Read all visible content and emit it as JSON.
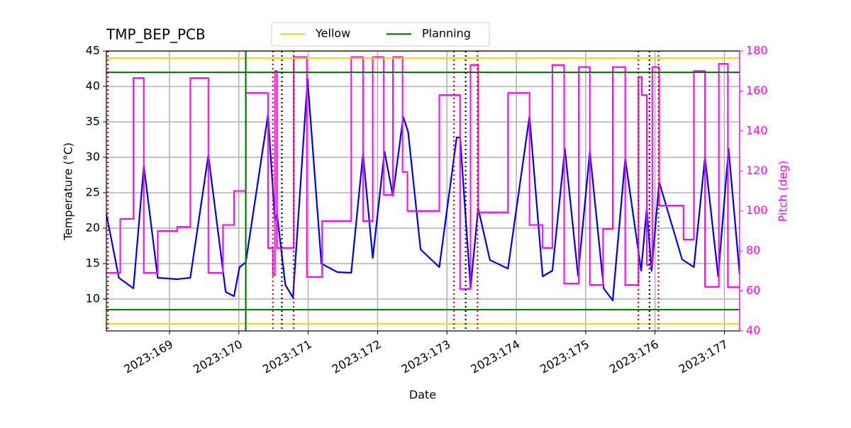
{
  "chart_data": {
    "type": "line",
    "title": "TMP_BEP_PCB",
    "xlabel": "Date",
    "ylabel": "Temperature (°C)",
    "y2label": "Pitch (deg)",
    "xlim": [
      168.09,
      177.22
    ],
    "xticks": [
      {
        "value": 169,
        "label": "2023:169"
      },
      {
        "value": 170,
        "label": "2023:170"
      },
      {
        "value": 171,
        "label": "2023:171"
      },
      {
        "value": 172,
        "label": "2023:172"
      },
      {
        "value": 173,
        "label": "2023:173"
      },
      {
        "value": 174,
        "label": "2023:174"
      },
      {
        "value": 175,
        "label": "2023:175"
      },
      {
        "value": 176,
        "label": "2023:176"
      },
      {
        "value": 177,
        "label": "2023:177"
      }
    ],
    "ylim": [
      5.5,
      45
    ],
    "yticks": [
      10,
      15,
      20,
      25,
      30,
      35,
      40,
      45
    ],
    "y2lim": [
      40,
      180
    ],
    "y2ticks": [
      40,
      60,
      80,
      100,
      120,
      140,
      160,
      180
    ],
    "grid": true,
    "legend": "top",
    "limits": [
      {
        "name": "Yellow",
        "color": "#ffd700",
        "values": [
          44,
          6.5
        ]
      },
      {
        "name": "Planning",
        "color": "#008000",
        "values": [
          42,
          8.5
        ]
      }
    ],
    "vlines": [
      {
        "x": 170.1,
        "color": "#008000",
        "style": "solid"
      },
      {
        "x": 168.11,
        "color": "#e00000",
        "style": "dotted"
      },
      {
        "x": 170.49,
        "color": "#e00000",
        "style": "dotted"
      },
      {
        "x": 170.79,
        "color": "#e00000",
        "style": "dotted"
      },
      {
        "x": 173.1,
        "color": "#e00000",
        "style": "dotted"
      },
      {
        "x": 173.44,
        "color": "#e00000",
        "style": "dotted"
      },
      {
        "x": 175.76,
        "color": "#e00000",
        "style": "dotted"
      },
      {
        "x": 176.05,
        "color": "#e00000",
        "style": "dotted"
      },
      {
        "x": 170.62,
        "color": "#000000",
        "style": "dotted"
      },
      {
        "x": 173.27,
        "color": "#000000",
        "style": "dotted"
      },
      {
        "x": 175.92,
        "color": "#000000",
        "style": "dotted"
      }
    ],
    "series": [
      {
        "color": "#0000ee",
        "axis": "y",
        "drawstyle": "line",
        "x": [
          168.09,
          168.27,
          168.48,
          168.63,
          168.83,
          169.11,
          169.3,
          169.56,
          169.81,
          169.93,
          170.01,
          170.1,
          170.42,
          170.52,
          170.55,
          170.67,
          170.78,
          170.99,
          171.19,
          171.42,
          171.62,
          171.79,
          171.93,
          172.1,
          172.22,
          172.37,
          172.44,
          172.62,
          172.89,
          173.14,
          173.19,
          173.34,
          173.45,
          173.62,
          173.88,
          174.19,
          174.38,
          174.52,
          174.7,
          174.89,
          175.06,
          175.26,
          175.39,
          175.57,
          175.8,
          175.88,
          175.95,
          176.06,
          176.39,
          176.56,
          176.72,
          176.91,
          177.06,
          177.22
        ],
        "values": [
          22,
          13,
          11.5,
          28.8,
          13,
          12.8,
          13,
          30.3,
          11,
          10.4,
          14.5,
          15.2,
          36,
          21,
          22,
          12,
          10.2,
          41,
          15,
          13.8,
          13.7,
          30.5,
          15.8,
          30.8,
          24.6,
          35.7,
          33.6,
          17,
          14.5,
          32.8,
          32.8,
          11.5,
          22.8,
          15.5,
          14.3,
          35.8,
          13.2,
          14,
          31.2,
          13.3,
          30.8,
          11.5,
          9.8,
          29.8,
          14,
          22.8,
          14,
          26.5,
          15.6,
          14.5,
          30,
          13.2,
          31.2,
          13.5
        ]
      },
      {
        "color": "#ff00ff",
        "axis": "y2",
        "drawstyle": "steps-post",
        "x": [
          168.09,
          168.29,
          168.48,
          168.63,
          168.83,
          169.11,
          169.3,
          169.56,
          169.77,
          169.93,
          170.1,
          170.42,
          170.49,
          170.52,
          170.55,
          170.79,
          170.98,
          171.2,
          171.62,
          171.79,
          171.93,
          172.09,
          172.22,
          172.36,
          172.43,
          172.89,
          173.19,
          173.34,
          173.45,
          173.88,
          174.19,
          174.38,
          174.52,
          174.69,
          174.9,
          175.06,
          175.25,
          175.39,
          175.57,
          175.76,
          175.81,
          175.88,
          175.96,
          176.06,
          176.41,
          176.56,
          176.72,
          176.92,
          177.05
        ],
        "values": [
          69,
          96,
          166.5,
          69,
          90,
          92,
          166.5,
          69,
          93,
          110,
          159,
          81.5,
          68,
          170,
          81.5,
          177,
          67,
          95,
          177,
          95,
          177,
          108,
          177,
          119.5,
          100,
          158,
          61,
          173,
          99.3,
          159,
          93,
          81.5,
          173,
          63.7,
          172,
          63,
          91,
          172,
          63,
          167,
          158,
          73,
          172,
          102.7,
          85.7,
          170,
          62,
          173.6,
          61.9
        ]
      }
    ]
  }
}
